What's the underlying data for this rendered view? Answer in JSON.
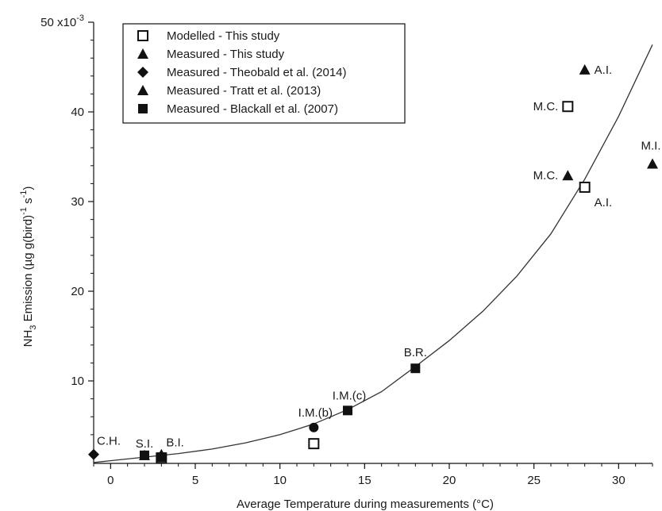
{
  "chart_data": {
    "type": "scatter",
    "xlabel": "Average Temperature during measurements (°C)",
    "ylabel": {
      "pre": "NH",
      "sub": "3",
      "mid": " Emission (µg g(bird)",
      "sup1": "-1",
      "mid2": " s",
      "sup2": "-1",
      "post": ")"
    },
    "y_multiplier_label": "50 x10",
    "y_multiplier_exp": "-3",
    "xlim": [
      -1,
      32
    ],
    "ylim": [
      0.8,
      50
    ],
    "xticks": [
      0,
      5,
      10,
      15,
      20,
      25,
      30
    ],
    "yticks": [
      10,
      20,
      30,
      40
    ],
    "grid": false,
    "legend_position": "top-left",
    "series": [
      {
        "name": "Modelled - This study",
        "marker": "square-open",
        "points": [
          {
            "x": 3.0,
            "y": 1.4,
            "label": ""
          },
          {
            "x": 12.0,
            "y": 3.0,
            "label": ""
          },
          {
            "x": 27.0,
            "y": 40.6,
            "label": "M.C."
          },
          {
            "x": 28.0,
            "y": 31.6,
            "label": "A.I."
          }
        ]
      },
      {
        "name": "Measured - This study",
        "marker": "triangle",
        "points": [
          {
            "x": 2.0,
            "y": 1.7,
            "label": "S.I."
          },
          {
            "x": 3.0,
            "y": 1.8,
            "label": "B.I."
          },
          {
            "x": 27.0,
            "y": 32.9,
            "label": "M.C."
          },
          {
            "x": 28.0,
            "y": 44.7,
            "label": "A.I."
          }
        ]
      },
      {
        "name": "Measured - Theobald et al. (2014)",
        "marker": "diamond",
        "points": [
          {
            "x": -1.0,
            "y": 1.8,
            "label": "C.H."
          },
          {
            "x": 12.0,
            "y": 4.8,
            "label": ""
          }
        ]
      },
      {
        "name": "Measured - Tratt et al. (2013)",
        "marker": "triangle",
        "points": [
          {
            "x": 32.0,
            "y": 34.2,
            "label": "M.I."
          }
        ]
      },
      {
        "name": "Measured - Blackall et al. (2007)",
        "marker": "square",
        "points": [
          {
            "x": 2.0,
            "y": 1.7,
            "label": ""
          },
          {
            "x": 3.0,
            "y": 1.5,
            "label": ""
          },
          {
            "x": 14.0,
            "y": 6.7,
            "label": ""
          },
          {
            "x": 18.0,
            "y": 11.4,
            "label": "B.R."
          }
        ]
      }
    ],
    "extra_labels": [
      {
        "text": "I.M.(b)",
        "x": 12.0,
        "y": 4.8
      },
      {
        "text": "I.M.(c)",
        "x": 14.0,
        "y": 6.7
      }
    ],
    "fit_curve": {
      "type": "exponential",
      "x": [
        -1,
        0,
        2,
        4,
        6,
        8,
        10,
        12,
        14,
        16,
        18,
        20,
        22,
        24,
        26,
        28,
        30,
        32
      ],
      "y": [
        0.9,
        1.1,
        1.5,
        1.9,
        2.4,
        3.1,
        4.0,
        5.2,
        6.8,
        8.8,
        11.6,
        14.5,
        17.8,
        21.7,
        26.4,
        32.5,
        39.5,
        47.5
      ]
    }
  }
}
